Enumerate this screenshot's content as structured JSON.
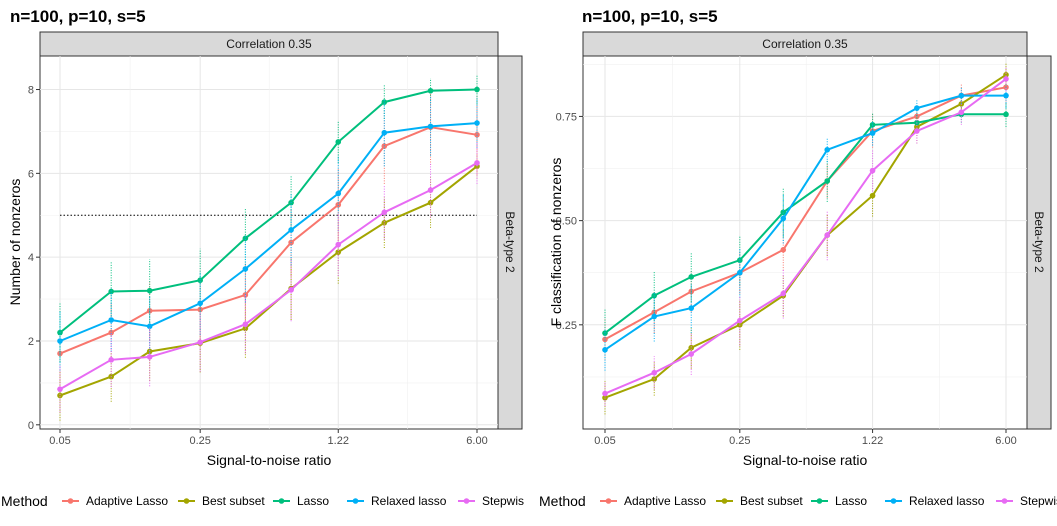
{
  "legend": {
    "title": "Method",
    "items": [
      {
        "label": "Adaptive Lasso",
        "color": "#F8766D"
      },
      {
        "label": "Best subset",
        "color": "#A3A500"
      },
      {
        "label": "Lasso",
        "color": "#00BF7D"
      },
      {
        "label": "Relaxed lasso",
        "color": "#00B0F6"
      },
      {
        "label": "Stepwis",
        "color": "#E76BF3"
      }
    ]
  },
  "chart_data": [
    {
      "type": "line",
      "title": "n=100, p=10, s=5",
      "facet_top": "Correlation 0.35",
      "facet_right": "Beta-type 2",
      "xlabel": "Signal-to-noise ratio",
      "ylabel": "Number of nonzeros",
      "x_scale": "log",
      "x": [
        0.05,
        0.09,
        0.14,
        0.25,
        0.42,
        0.71,
        1.22,
        2.07,
        3.52,
        6.0
      ],
      "xticks": [
        {
          "value": 0.05,
          "label": "0.05"
        },
        {
          "value": 0.25,
          "label": "0.25"
        },
        {
          "value": 1.22,
          "label": "1.22"
        },
        {
          "value": 6.0,
          "label": "6.00"
        }
      ],
      "ylim": [
        -0.1,
        8.8
      ],
      "yticks": [
        {
          "value": 0,
          "label": "0"
        },
        {
          "value": 2,
          "label": "2"
        },
        {
          "value": 4,
          "label": "4"
        },
        {
          "value": 6,
          "label": "6"
        },
        {
          "value": 8,
          "label": "8"
        }
      ],
      "reference_line": 5,
      "series": [
        {
          "name": "Adaptive Lasso",
          "color": "#F8766D",
          "values": [
            1.7,
            2.2,
            2.72,
            2.75,
            3.1,
            4.35,
            5.25,
            6.65,
            7.1,
            6.92
          ],
          "err": [
            0.7,
            0.7,
            0.7,
            0.7,
            0.75,
            0.8,
            0.85,
            0.9,
            0.9,
            0.95
          ]
        },
        {
          "name": "Best subset",
          "color": "#A3A500",
          "values": [
            0.7,
            1.15,
            1.75,
            1.95,
            2.3,
            3.25,
            4.12,
            4.82,
            5.3,
            6.17
          ],
          "err": [
            0.6,
            0.6,
            0.7,
            0.7,
            0.7,
            0.75,
            0.75,
            0.6,
            0.6,
            0.3
          ]
        },
        {
          "name": "Lasso",
          "color": "#00BF7D",
          "values": [
            2.2,
            3.18,
            3.2,
            3.45,
            4.45,
            5.3,
            6.75,
            7.7,
            7.97,
            8.0
          ],
          "err": [
            0.7,
            0.7,
            0.75,
            0.75,
            0.7,
            0.65,
            0.5,
            0.4,
            0.3,
            0.35
          ]
        },
        {
          "name": "Relaxed lasso",
          "color": "#00B0F6",
          "values": [
            2.0,
            2.5,
            2.35,
            2.9,
            3.72,
            4.65,
            5.52,
            6.97,
            7.12,
            7.2
          ],
          "err": [
            0.7,
            0.75,
            0.7,
            0.75,
            0.8,
            0.85,
            0.9,
            0.8,
            0.7,
            0.6
          ]
        },
        {
          "name": "Stepwis",
          "color": "#E76BF3",
          "values": [
            0.85,
            1.55,
            1.62,
            1.97,
            2.4,
            3.22,
            4.3,
            5.07,
            5.6,
            6.25
          ],
          "err": [
            0.55,
            0.65,
            0.7,
            0.7,
            0.7,
            0.75,
            0.75,
            0.65,
            0.65,
            0.5
          ]
        }
      ]
    },
    {
      "type": "line",
      "title": "n=100, p=10, s=5",
      "facet_top": "Correlation 0.35",
      "facet_right": "Beta-type 2",
      "xlabel": "Signal-to-noise ratio",
      "ylabel": "F classification of nonzeros",
      "x_scale": "log",
      "x": [
        0.05,
        0.09,
        0.14,
        0.25,
        0.42,
        0.71,
        1.22,
        2.07,
        3.52,
        6.0
      ],
      "xticks": [
        {
          "value": 0.05,
          "label": "0.05"
        },
        {
          "value": 0.25,
          "label": "0.25"
        },
        {
          "value": 1.22,
          "label": "1.22"
        },
        {
          "value": 6.0,
          "label": "6.00"
        }
      ],
      "ylim": [
        0.0,
        0.895
      ],
      "yticks": [
        {
          "value": 0.25,
          "label": "0.25"
        },
        {
          "value": 0.5,
          "label": "0.50"
        },
        {
          "value": 0.75,
          "label": "0.75"
        }
      ],
      "series": [
        {
          "name": "Adaptive Lasso",
          "color": "#F8766D",
          "values": [
            0.215,
            0.28,
            0.33,
            0.375,
            0.43,
            0.595,
            0.715,
            0.75,
            0.8,
            0.82
          ],
          "err": [
            0.05,
            0.05,
            0.05,
            0.05,
            0.05,
            0.04,
            0.04,
            0.03,
            0.03,
            0.04
          ]
        },
        {
          "name": "Best subset",
          "color": "#A3A500",
          "values": [
            0.075,
            0.12,
            0.195,
            0.25,
            0.32,
            0.465,
            0.56,
            0.725,
            0.78,
            0.85
          ],
          "err": [
            0.04,
            0.04,
            0.05,
            0.06,
            0.05,
            0.05,
            0.05,
            0.04,
            0.03,
            0.03
          ]
        },
        {
          "name": "Lasso",
          "color": "#00BF7D",
          "values": [
            0.23,
            0.32,
            0.365,
            0.405,
            0.52,
            0.595,
            0.73,
            0.735,
            0.755,
            0.755
          ],
          "err": [
            0.06,
            0.06,
            0.06,
            0.06,
            0.06,
            0.05,
            0.03,
            0.02,
            0.02,
            0.03
          ]
        },
        {
          "name": "Relaxed lasso",
          "color": "#00B0F6",
          "values": [
            0.19,
            0.27,
            0.29,
            0.375,
            0.505,
            0.67,
            0.71,
            0.77,
            0.8,
            0.8
          ],
          "err": [
            0.05,
            0.06,
            0.06,
            0.06,
            0.06,
            0.03,
            0.03,
            0.02,
            0.02,
            0.03
          ]
        },
        {
          "name": "Stepwis",
          "color": "#E76BF3",
          "values": [
            0.085,
            0.135,
            0.18,
            0.26,
            0.325,
            0.465,
            0.62,
            0.715,
            0.76,
            0.84
          ],
          "err": [
            0.03,
            0.04,
            0.05,
            0.06,
            0.06,
            0.06,
            0.05,
            0.03,
            0.03,
            0.03
          ]
        }
      ]
    }
  ]
}
